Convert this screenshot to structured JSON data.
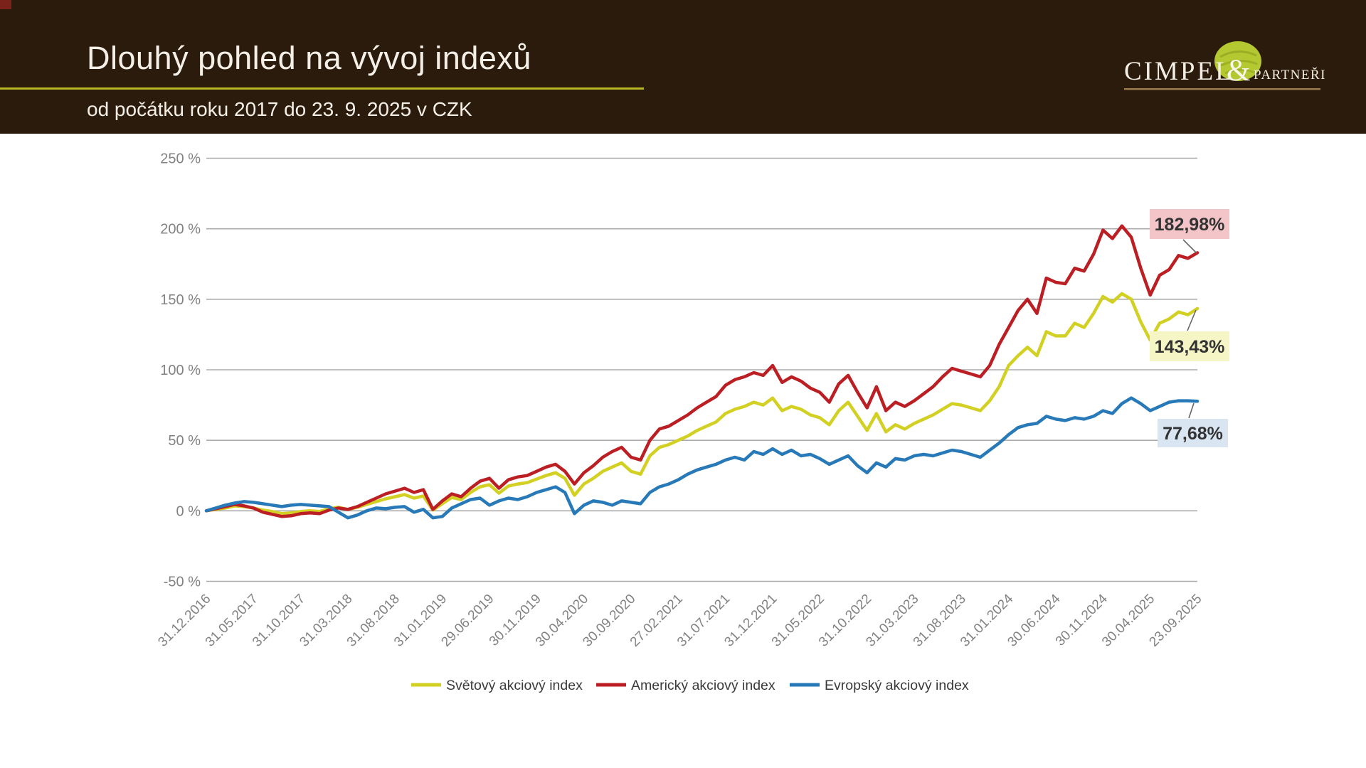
{
  "header": {
    "title": "Dlouhý pohled na vývoj indexů",
    "subtitle": "od počátku roku 2017 do 23. 9. 2025 v CZK",
    "logo": {
      "name1": "CIMPEL",
      "amp": "&",
      "name2": "PARTNEŘI"
    }
  },
  "colors": {
    "header_bg": "#2b1b0c",
    "header_fg": "#f4efe7",
    "title_underline": "#b5b622",
    "corner_mark": "#7b221a",
    "logo_blob": "#b4c832",
    "logo_blob_stroke": "#93a620",
    "logo_underline": "#9a7b4e",
    "grid": "#ababab",
    "axis_text": "#828282",
    "legend_text": "#3a3a3a",
    "callout_text": "#333333",
    "leader_line": "#666666"
  },
  "chart_data": {
    "type": "line",
    "title": "",
    "xlabel": "",
    "ylabel": "",
    "ylim": [
      -50,
      250
    ],
    "grid": true,
    "legend_position": "bottom",
    "y_ticks": [
      "250 %",
      "200 %",
      "150 %",
      "100 %",
      "50 %",
      "0 %",
      "-50 %"
    ],
    "y_tick_values": [
      250,
      200,
      150,
      100,
      50,
      0,
      -50
    ],
    "x_tick_labels": [
      "31.12.2016",
      "31.05.2017",
      "31.10.2017",
      "31.03.2018",
      "31.08.2018",
      "31.01.2019",
      "29.06.2019",
      "30.11.2019",
      "30.04.2020",
      "30.09.2020",
      "27.02.2021",
      "31.07.2021",
      "31.12.2021",
      "31.05.2022",
      "31.10.2022",
      "31.03.2023",
      "31.08.2023",
      "31.01.2024",
      "30.06.2024",
      "30.11.2024",
      "30.04.2025",
      "23.09.2025"
    ],
    "x_months_per_tick": 5,
    "series": [
      {
        "name": "Světový akciový index",
        "color": "#d3d024",
        "end_value": 143.43,
        "end_label": "143,43%",
        "end_label_bg": "#f5f5c6",
        "values": [
          0,
          1,
          2,
          3.5,
          3,
          2,
          0.5,
          -0.5,
          -2,
          -1.5,
          -0.5,
          0,
          -0.5,
          1.5,
          2.5,
          1,
          2.5,
          4.5,
          6.5,
          8.5,
          10,
          11.5,
          9,
          10.5,
          0.5,
          5,
          9.5,
          8,
          13,
          17,
          18.5,
          12.5,
          17.5,
          19,
          20,
          22.5,
          25,
          27,
          23,
          11,
          19,
          23,
          28,
          31,
          34,
          28,
          26,
          39,
          45,
          47,
          50,
          53,
          57,
          60,
          63,
          69,
          72,
          74,
          77,
          75,
          80,
          71,
          74,
          72,
          68,
          66,
          61,
          71,
          77,
          67,
          57,
          69,
          56,
          61,
          58,
          62,
          65,
          68,
          72,
          76,
          75,
          73,
          71,
          78,
          88,
          103,
          110,
          116,
          110,
          127,
          124,
          124,
          133,
          130,
          140,
          152,
          148,
          154,
          150,
          134,
          121,
          133,
          136,
          141,
          139,
          143.43
        ]
      },
      {
        "name": "Americký akciový index",
        "color": "#bc1f23",
        "end_value": 182.98,
        "end_label": "182,98%",
        "end_label_bg": "#f3c5c9",
        "values": [
          0,
          1.5,
          3,
          4.5,
          3.5,
          2,
          -1,
          -2.5,
          -4,
          -3.5,
          -2,
          -1.5,
          -2,
          0.5,
          2,
          1,
          3,
          6,
          9,
          12,
          14,
          16,
          13,
          15,
          1,
          7,
          12,
          10,
          16,
          21,
          23,
          16,
          22,
          24,
          25,
          28,
          31,
          33,
          28,
          19,
          27,
          32,
          38,
          42,
          45,
          38,
          36,
          50,
          58,
          60,
          64,
          68,
          73,
          77,
          81,
          89,
          93,
          95,
          98,
          96,
          103,
          91,
          95,
          92,
          87,
          84,
          77,
          90,
          96,
          84,
          73,
          88,
          71,
          77,
          74,
          78,
          83,
          88,
          95,
          101,
          99,
          97,
          95,
          103,
          118,
          130,
          142,
          150,
          140,
          165,
          162,
          161,
          172,
          170,
          182,
          199,
          193,
          202,
          194,
          172,
          153,
          167,
          171,
          181,
          179,
          182.98
        ]
      },
      {
        "name": "Evropský akciový index",
        "color": "#2779b8",
        "end_value": 77.68,
        "end_label": "77,68%",
        "end_label_bg": "#d9e6f2",
        "values": [
          0,
          2,
          4,
          5.5,
          6.5,
          6,
          5,
          4,
          3,
          4,
          4.5,
          4,
          3.5,
          3,
          -1,
          -5,
          -3,
          0,
          2,
          1.5,
          2.5,
          3,
          -1,
          1,
          -5,
          -4,
          2,
          5,
          8,
          9,
          4,
          7,
          9,
          8,
          10,
          13,
          15,
          17,
          13,
          -2,
          4,
          7,
          6,
          4,
          7,
          6,
          5,
          13,
          17,
          19,
          22,
          26,
          29,
          31,
          33,
          36,
          38,
          36,
          42,
          40,
          44,
          40,
          43,
          39,
          40,
          37,
          33,
          36,
          39,
          32,
          27,
          34,
          31,
          37,
          36,
          39,
          40,
          39,
          41,
          43,
          42,
          40,
          38,
          43,
          48,
          54,
          59,
          61,
          62,
          67,
          65,
          64,
          66,
          65,
          67,
          71,
          69,
          76,
          80,
          76,
          71,
          74,
          77,
          78,
          78,
          77.68
        ]
      }
    ]
  }
}
